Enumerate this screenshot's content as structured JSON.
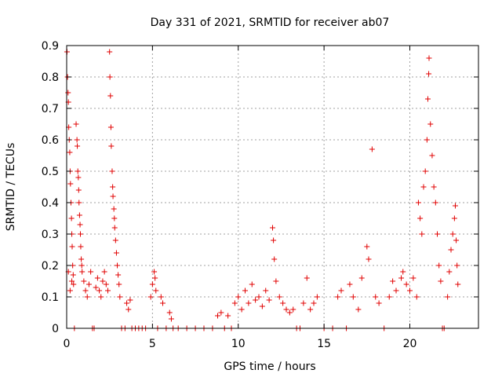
{
  "chart_data": {
    "type": "scatter",
    "title": "Day 331 of 2021, SRMTID for receiver ab07",
    "xlabel": "GPS time / hours",
    "ylabel": "SRMTID / TECUs",
    "xlim": [
      0,
      24
    ],
    "ylim": [
      0,
      0.9
    ],
    "xticks": [
      0,
      5,
      10,
      15,
      20
    ],
    "yticks": [
      0,
      0.1,
      0.2,
      0.3,
      0.4,
      0.5,
      0.6,
      0.7,
      0.8,
      0.9
    ],
    "grid": true,
    "marker": "+",
    "color": "#e00000",
    "series": [
      {
        "name": "SRMTID",
        "points": [
          [
            0.02,
            0.88
          ],
          [
            0.05,
            0.8
          ],
          [
            0.08,
            0.75
          ],
          [
            0.1,
            0.72
          ],
          [
            0.12,
            0.64
          ],
          [
            0.15,
            0.6
          ],
          [
            0.18,
            0.56
          ],
          [
            0.2,
            0.5
          ],
          [
            0.22,
            0.46
          ],
          [
            0.25,
            0.4
          ],
          [
            0.28,
            0.35
          ],
          [
            0.3,
            0.3
          ],
          [
            0.32,
            0.26
          ],
          [
            0.35,
            0.2
          ],
          [
            0.38,
            0.17
          ],
          [
            0.4,
            0.14
          ],
          [
            0.1,
            0.18
          ],
          [
            0.2,
            0.12
          ],
          [
            0.3,
            0.15
          ],
          [
            0.45,
            0.0
          ],
          [
            0.55,
            0.65
          ],
          [
            0.6,
            0.6
          ],
          [
            0.62,
            0.58
          ],
          [
            0.65,
            0.5
          ],
          [
            0.68,
            0.48
          ],
          [
            0.7,
            0.44
          ],
          [
            0.72,
            0.4
          ],
          [
            0.75,
            0.36
          ],
          [
            0.78,
            0.33
          ],
          [
            0.8,
            0.3
          ],
          [
            0.82,
            0.26
          ],
          [
            0.85,
            0.22
          ],
          [
            0.88,
            0.2
          ],
          [
            0.9,
            0.18
          ],
          [
            1.0,
            0.15
          ],
          [
            1.1,
            0.12
          ],
          [
            1.2,
            0.1
          ],
          [
            1.3,
            0.14
          ],
          [
            1.4,
            0.18
          ],
          [
            1.5,
            0.0
          ],
          [
            1.6,
            0.0
          ],
          [
            1.7,
            0.13
          ],
          [
            1.8,
            0.16
          ],
          [
            1.9,
            0.12
          ],
          [
            2.0,
            0.1
          ],
          [
            2.1,
            0.15
          ],
          [
            2.2,
            0.18
          ],
          [
            2.3,
            0.14
          ],
          [
            2.4,
            0.12
          ],
          [
            2.5,
            0.88
          ],
          [
            2.52,
            0.8
          ],
          [
            2.55,
            0.74
          ],
          [
            2.58,
            0.64
          ],
          [
            2.6,
            0.58
          ],
          [
            2.65,
            0.5
          ],
          [
            2.68,
            0.45
          ],
          [
            2.7,
            0.42
          ],
          [
            2.75,
            0.38
          ],
          [
            2.78,
            0.35
          ],
          [
            2.8,
            0.32
          ],
          [
            2.85,
            0.28
          ],
          [
            2.9,
            0.24
          ],
          [
            2.95,
            0.2
          ],
          [
            3.0,
            0.17
          ],
          [
            3.05,
            0.14
          ],
          [
            3.1,
            0.1
          ],
          [
            3.2,
            0.0
          ],
          [
            3.4,
            0.0
          ],
          [
            3.5,
            0.08
          ],
          [
            3.6,
            0.06
          ],
          [
            3.7,
            0.09
          ],
          [
            3.8,
            0.0
          ],
          [
            4.0,
            0.0
          ],
          [
            4.2,
            0.0
          ],
          [
            4.4,
            0.0
          ],
          [
            4.6,
            0.0
          ],
          [
            4.9,
            0.1
          ],
          [
            5.0,
            0.14
          ],
          [
            5.1,
            0.18
          ],
          [
            5.15,
            0.16
          ],
          [
            5.2,
            0.12
          ],
          [
            5.3,
            0.0
          ],
          [
            5.5,
            0.1
          ],
          [
            5.6,
            0.08
          ],
          [
            5.8,
            0.0
          ],
          [
            6.0,
            0.05
          ],
          [
            6.1,
            0.03
          ],
          [
            6.2,
            0.0
          ],
          [
            6.5,
            0.0
          ],
          [
            7.0,
            0.0
          ],
          [
            7.5,
            0.0
          ],
          [
            8.0,
            0.0
          ],
          [
            8.5,
            0.0
          ],
          [
            8.8,
            0.04
          ],
          [
            9.0,
            0.05
          ],
          [
            9.2,
            0.0
          ],
          [
            9.4,
            0.04
          ],
          [
            9.6,
            0.0
          ],
          [
            9.8,
            0.08
          ],
          [
            10.0,
            0.1
          ],
          [
            10.2,
            0.06
          ],
          [
            10.4,
            0.12
          ],
          [
            10.6,
            0.08
          ],
          [
            10.8,
            0.14
          ],
          [
            11.0,
            0.09
          ],
          [
            11.2,
            0.1
          ],
          [
            11.4,
            0.07
          ],
          [
            11.6,
            0.12
          ],
          [
            11.8,
            0.09
          ],
          [
            12.0,
            0.32
          ],
          [
            12.05,
            0.28
          ],
          [
            12.1,
            0.22
          ],
          [
            12.2,
            0.15
          ],
          [
            12.4,
            0.1
          ],
          [
            12.6,
            0.08
          ],
          [
            12.8,
            0.06
          ],
          [
            13.0,
            0.05
          ],
          [
            13.2,
            0.06
          ],
          [
            13.4,
            0.0
          ],
          [
            13.6,
            0.0
          ],
          [
            13.8,
            0.08
          ],
          [
            14.0,
            0.16
          ],
          [
            14.2,
            0.06
          ],
          [
            14.4,
            0.08
          ],
          [
            14.6,
            0.1
          ],
          [
            15.0,
            0.0
          ],
          [
            15.5,
            0.0
          ],
          [
            15.8,
            0.1
          ],
          [
            16.0,
            0.12
          ],
          [
            16.3,
            0.0
          ],
          [
            16.5,
            0.14
          ],
          [
            16.7,
            0.1
          ],
          [
            17.0,
            0.06
          ],
          [
            17.2,
            0.16
          ],
          [
            17.5,
            0.26
          ],
          [
            17.6,
            0.22
          ],
          [
            17.8,
            0.57
          ],
          [
            18.0,
            0.1
          ],
          [
            18.2,
            0.08
          ],
          [
            18.5,
            0.0
          ],
          [
            18.8,
            0.1
          ],
          [
            19.0,
            0.15
          ],
          [
            19.2,
            0.12
          ],
          [
            19.5,
            0.16
          ],
          [
            19.6,
            0.18
          ],
          [
            19.8,
            0.14
          ],
          [
            20.0,
            0.12
          ],
          [
            20.2,
            0.16
          ],
          [
            20.4,
            0.1
          ],
          [
            20.5,
            0.4
          ],
          [
            20.6,
            0.35
          ],
          [
            20.7,
            0.3
          ],
          [
            20.8,
            0.45
          ],
          [
            20.9,
            0.5
          ],
          [
            21.0,
            0.6
          ],
          [
            21.05,
            0.73
          ],
          [
            21.1,
            0.81
          ],
          [
            21.12,
            0.86
          ],
          [
            21.2,
            0.65
          ],
          [
            21.3,
            0.55
          ],
          [
            21.4,
            0.45
          ],
          [
            21.5,
            0.4
          ],
          [
            21.6,
            0.3
          ],
          [
            21.7,
            0.2
          ],
          [
            21.8,
            0.15
          ],
          [
            21.9,
            0.0
          ],
          [
            22.0,
            0.0
          ],
          [
            22.2,
            0.1
          ],
          [
            22.3,
            0.18
          ],
          [
            22.4,
            0.25
          ],
          [
            22.5,
            0.3
          ],
          [
            22.6,
            0.35
          ],
          [
            22.65,
            0.39
          ],
          [
            22.7,
            0.28
          ],
          [
            22.75,
            0.2
          ],
          [
            22.8,
            0.14
          ]
        ]
      }
    ]
  }
}
